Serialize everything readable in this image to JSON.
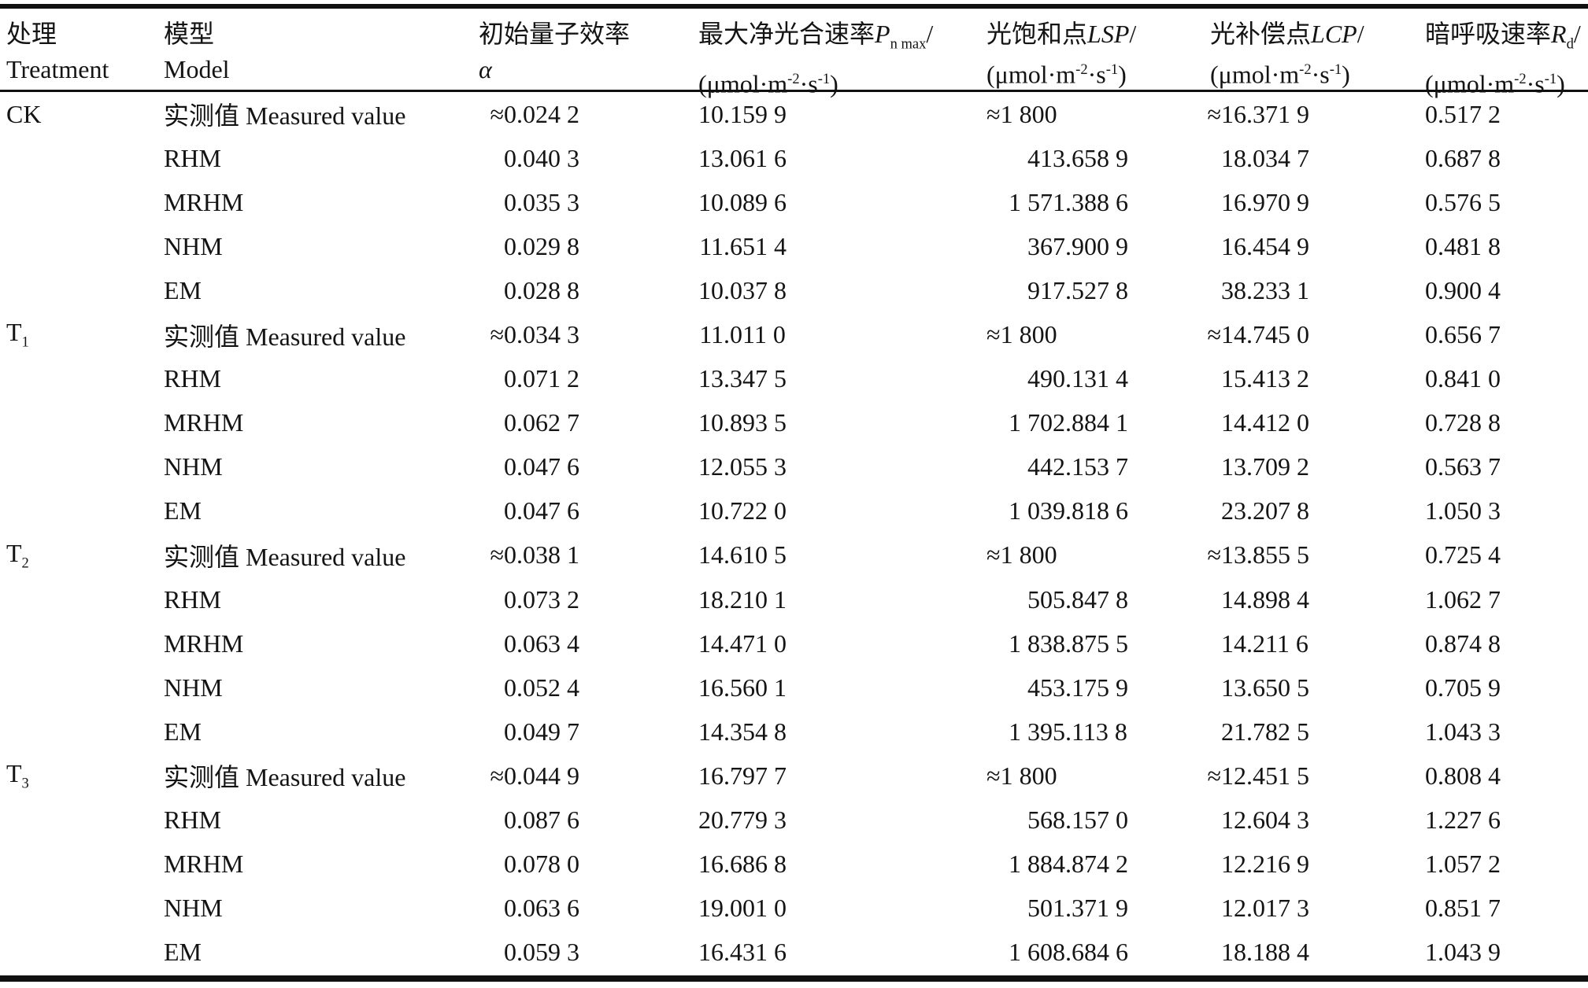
{
  "columns": [
    {
      "zh": "处理",
      "en": "Treatment"
    },
    {
      "zh": "模型",
      "en": "Model"
    },
    {
      "zh": "初始量子效率",
      "sym": "α"
    },
    {
      "zh": "最大净光合速率",
      "sym": "P",
      "sub": "n max",
      "slash": "/"
    },
    {
      "zh": "光饱和点",
      "sym": "LSP",
      "sub": "",
      "slash": "/"
    },
    {
      "zh": "光补偿点",
      "sym": "LCP",
      "sub": "",
      "slash": "/"
    },
    {
      "zh": "暗呼吸速率",
      "sym": "R",
      "sub": "d",
      "slash": "/"
    }
  ],
  "unit": {
    "pre": "(μmol·m",
    "sup_a": "-2",
    "mid": "·s",
    "sup_b": "-1",
    "post": ")"
  },
  "groups": [
    {
      "treatment": {
        "base": "CK",
        "sub": ""
      },
      "rows": [
        {
          "model": "实测值 Measured value",
          "alpha": "≈0.024 2",
          "pnmax": "10.159 9",
          "lsp": "≈1 800",
          "lcp": "≈16.371 9",
          "rd": "0.517 2"
        },
        {
          "model": "RHM",
          "alpha": "0.040 3",
          "pnmax": "13.061 6",
          "lsp": "413.658 9",
          "lcp": "18.034 7",
          "rd": "0.687 8"
        },
        {
          "model": "MRHM",
          "alpha": "0.035 3",
          "pnmax": "10.089 6",
          "lsp": "1 571.388 6",
          "lcp": "16.970 9",
          "rd": "0.576 5"
        },
        {
          "model": "NHM",
          "alpha": "0.029 8",
          "pnmax": "11.651 4",
          "lsp": "367.900 9",
          "lcp": "16.454 9",
          "rd": "0.481 8"
        },
        {
          "model": "EM",
          "alpha": "0.028 8",
          "pnmax": "10.037 8",
          "lsp": "917.527 8",
          "lcp": "38.233 1",
          "rd": "0.900 4"
        }
      ]
    },
    {
      "treatment": {
        "base": "T",
        "sub": "1"
      },
      "rows": [
        {
          "model": "实测值 Measured value",
          "alpha": "≈0.034 3",
          "pnmax": "11.011 0",
          "lsp": "≈1 800",
          "lcp": "≈14.745 0",
          "rd": "0.656 7"
        },
        {
          "model": "RHM",
          "alpha": "0.071 2",
          "pnmax": "13.347 5",
          "lsp": "490.131 4",
          "lcp": "15.413 2",
          "rd": "0.841 0"
        },
        {
          "model": "MRHM",
          "alpha": "0.062 7",
          "pnmax": "10.893 5",
          "lsp": "1 702.884 1",
          "lcp": "14.412 0",
          "rd": "0.728 8"
        },
        {
          "model": "NHM",
          "alpha": "0.047 6",
          "pnmax": "12.055 3",
          "lsp": "442.153 7",
          "lcp": "13.709 2",
          "rd": "0.563 7"
        },
        {
          "model": "EM",
          "alpha": "0.047 6",
          "pnmax": "10.722 0",
          "lsp": "1 039.818 6",
          "lcp": "23.207 8",
          "rd": "1.050 3"
        }
      ]
    },
    {
      "treatment": {
        "base": "T",
        "sub": "2"
      },
      "rows": [
        {
          "model": "实测值 Measured value",
          "alpha": "≈0.038 1",
          "pnmax": "14.610 5",
          "lsp": "≈1 800",
          "lcp": "≈13.855 5",
          "rd": "0.725 4"
        },
        {
          "model": "RHM",
          "alpha": "0.073 2",
          "pnmax": "18.210 1",
          "lsp": "505.847 8",
          "lcp": "14.898 4",
          "rd": "1.062 7"
        },
        {
          "model": "MRHM",
          "alpha": "0.063 4",
          "pnmax": "14.471 0",
          "lsp": "1 838.875 5",
          "lcp": "14.211 6",
          "rd": "0.874 8"
        },
        {
          "model": "NHM",
          "alpha": "0.052 4",
          "pnmax": "16.560 1",
          "lsp": "453.175 9",
          "lcp": "13.650 5",
          "rd": "0.705 9"
        },
        {
          "model": "EM",
          "alpha": "0.049 7",
          "pnmax": "14.354 8",
          "lsp": "1 395.113 8",
          "lcp": "21.782 5",
          "rd": "1.043 3"
        }
      ]
    },
    {
      "treatment": {
        "base": "T",
        "sub": "3"
      },
      "rows": [
        {
          "model": "实测值 Measured value",
          "alpha": "≈0.044 9",
          "pnmax": "16.797 7",
          "lsp": "≈1 800",
          "lcp": "≈12.451 5",
          "rd": "0.808 4"
        },
        {
          "model": "RHM",
          "alpha": "0.087 6",
          "pnmax": "20.779 3",
          "lsp": "568.157 0",
          "lcp": "12.604 3",
          "rd": "1.227 6"
        },
        {
          "model": "MRHM",
          "alpha": "0.078 0",
          "pnmax": "16.686 8",
          "lsp": "1 884.874 2",
          "lcp": "12.216 9",
          "rd": "1.057 2"
        },
        {
          "model": "NHM",
          "alpha": "0.063 6",
          "pnmax": "19.001 0",
          "lsp": "501.371 9",
          "lcp": "12.017 3",
          "rd": "0.851 7"
        },
        {
          "model": "EM",
          "alpha": "0.059 3",
          "pnmax": "16.431 6",
          "lsp": "1 608.684 6",
          "lcp": "18.188 4",
          "rd": "1.043 9"
        }
      ]
    }
  ]
}
